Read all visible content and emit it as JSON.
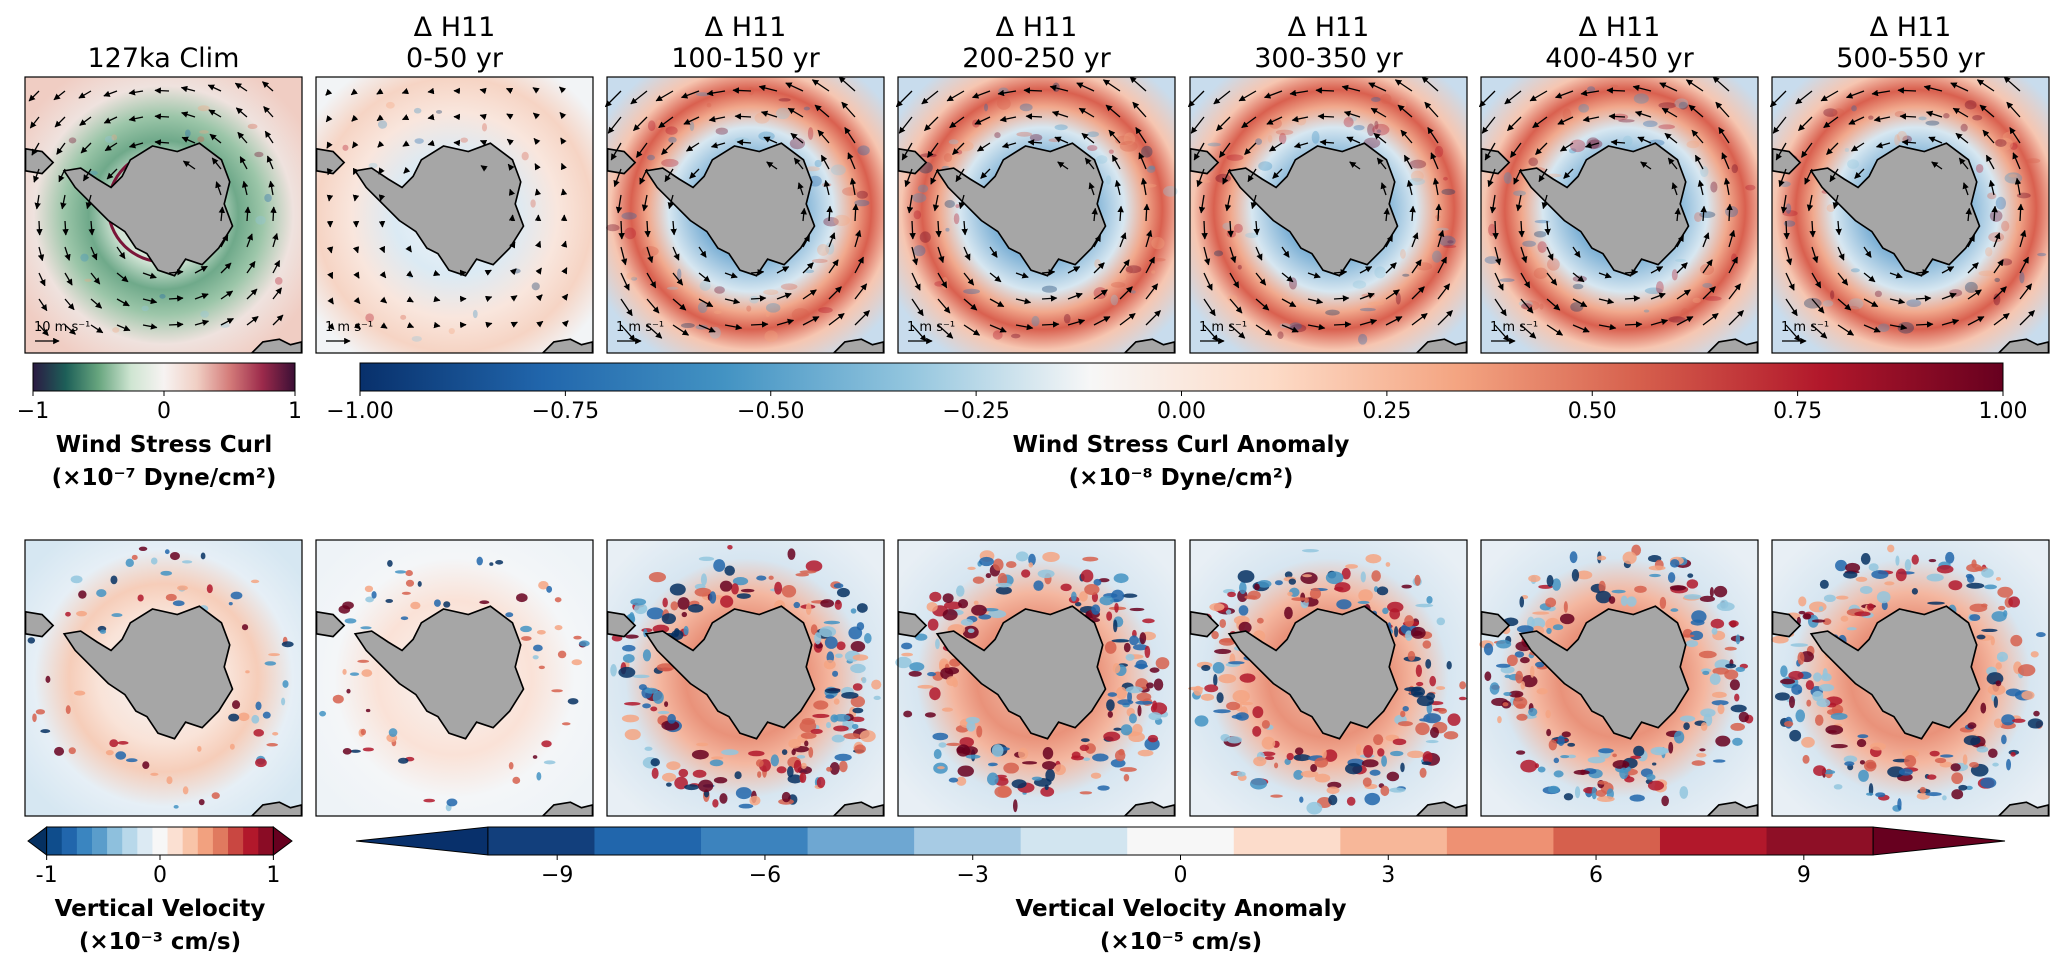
{
  "chart_data": [
    {
      "type": "heatmap",
      "variable": "Wind Stress Curl",
      "row": "top",
      "panels": [
        {
          "title_line1": "127ka Clim",
          "title_line2": "",
          "vector_scale": "10 m s⁻¹"
        },
        {
          "title_line1": "Δ H11",
          "title_line2": "0-50 yr",
          "vector_scale": "1 m s⁻¹"
        },
        {
          "title_line1": "Δ H11",
          "title_line2": "100-150 yr",
          "vector_scale": "1 m s⁻¹"
        },
        {
          "title_line1": "Δ H11",
          "title_line2": "200-250 yr",
          "vector_scale": "1 m s⁻¹"
        },
        {
          "title_line1": "Δ H11",
          "title_line2": "300-350 yr",
          "vector_scale": "1 m s⁻¹"
        },
        {
          "title_line1": "Δ H11",
          "title_line2": "400-450 yr",
          "vector_scale": "1 m s⁻¹"
        },
        {
          "title_line1": "Δ H11",
          "title_line2": "500-550 yr",
          "vector_scale": "1 m s⁻¹"
        }
      ],
      "colorbar_clim": {
        "range": [
          -1,
          1
        ],
        "ticks": [
          "−1",
          "0",
          "1"
        ],
        "label_line1": "Wind Stress Curl",
        "label_line2": "(×10⁻⁷ Dyne/cm²)",
        "colormap": [
          "#2b1a43",
          "#1d5f58",
          "#67a57e",
          "#cfe5d2",
          "#f7f3f2",
          "#f0cfc4",
          "#d47c7a",
          "#9c2a4b",
          "#3a0f35"
        ]
      },
      "colorbar_anom": {
        "range": [
          -1.0,
          1.0
        ],
        "ticks": [
          "−1.00",
          "−0.75",
          "−0.50",
          "−0.25",
          "0.00",
          "0.25",
          "0.50",
          "0.75",
          "1.00"
        ],
        "label_line1": "Wind Stress Curl Anomaly",
        "label_line2": "(×10⁻⁸ Dyne/cm²)",
        "colormap": [
          "#08306b",
          "#2166ac",
          "#4393c3",
          "#92c5de",
          "#f7f7f7",
          "#fddbc7",
          "#f4a582",
          "#d6604d",
          "#b2182b",
          "#67001f"
        ]
      }
    },
    {
      "type": "heatmap",
      "variable": "Vertical Velocity",
      "row": "bottom",
      "panels": [
        {
          "title_line1": "127ka Clim"
        },
        {
          "title_line1": "Δ H11",
          "title_line2": "0-50 yr"
        },
        {
          "title_line1": "Δ H11",
          "title_line2": "100-150 yr"
        },
        {
          "title_line1": "Δ H11",
          "title_line2": "200-250 yr"
        },
        {
          "title_line1": "Δ H11",
          "title_line2": "300-350 yr"
        },
        {
          "title_line1": "Δ H11",
          "title_line2": "400-450 yr"
        },
        {
          "title_line1": "Δ H11",
          "title_line2": "500-550 yr"
        }
      ],
      "colorbar_clim": {
        "range": [
          -1,
          1
        ],
        "ticks": [
          "-1",
          "0",
          "1"
        ],
        "extend": "both",
        "label_line1": "Vertical Velocity",
        "label_line2": "(×10⁻³ cm/s)",
        "colors": [
          "#053061",
          "#0f4d8c",
          "#2166ac",
          "#3a85c0",
          "#5a9dcb",
          "#8ec0dd",
          "#b8d8ea",
          "#dceaf3",
          "#f7f7f7",
          "#fbe0d2",
          "#f8c4a8",
          "#f2a17f",
          "#e07a5f",
          "#c94741",
          "#b2182b",
          "#8a0c25",
          "#67001f"
        ]
      },
      "colorbar_anom": {
        "range": [
          -10,
          10
        ],
        "ticks": [
          "−9",
          "−6",
          "−3",
          "0",
          "3",
          "6",
          "9"
        ],
        "tick_values": [
          -9,
          -6,
          -3,
          0,
          3,
          6,
          9
        ],
        "extend": "both",
        "label_line1": "Vertical Velocity Anomaly",
        "label_line2": "(×10⁻⁵ cm/s)",
        "colors": [
          "#08306b",
          "#123f7c",
          "#2166ac",
          "#3c83be",
          "#6ea7d2",
          "#a7cbe4",
          "#d2e5f0",
          "#f7f7f7",
          "#fcdccb",
          "#f7b799",
          "#ee9173",
          "#d6604d",
          "#b2182b",
          "#8e0f26",
          "#67001f"
        ]
      }
    }
  ]
}
